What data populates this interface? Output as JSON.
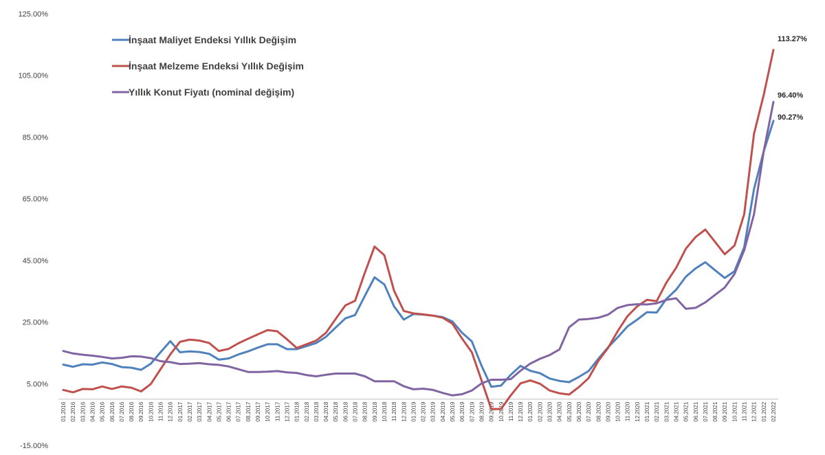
{
  "chart_data": {
    "type": "line",
    "title": "",
    "xlabel": "",
    "ylabel": "",
    "ylim": [
      -15,
      125
    ],
    "yticks": [
      "125.00%",
      "105.00%",
      "85.00%",
      "65.00%",
      "45.00%",
      "25.00%",
      "5.00%",
      "-15.00%"
    ],
    "grid": false,
    "legend_position": "top-left",
    "x": [
      "01.2016",
      "02.2016",
      "03.2016",
      "04.2016",
      "05.2016",
      "06.2016",
      "07.2016",
      "08.2016",
      "09.2016",
      "10.2016",
      "11.2016",
      "12.2016",
      "01.2017",
      "02.2017",
      "03.2017",
      "04.2017",
      "05.2017",
      "06.2017",
      "07.2017",
      "08.2017",
      "09.2017",
      "10.2017",
      "11.2017",
      "12.2017",
      "01.2018",
      "02.2018",
      "03.2018",
      "04.2018",
      "05.2018",
      "06.2018",
      "07.2018",
      "08.2018",
      "09.2018",
      "10.2018",
      "11.2018",
      "12.2018",
      "01.2019",
      "02.2019",
      "03.2019",
      "04.2019",
      "05.2019",
      "06.2019",
      "07.2019",
      "08.2019",
      "09.2019",
      "10.2019",
      "11.2019",
      "12.2019",
      "01.2020",
      "02.2020",
      "03.2020",
      "04.2020",
      "05.2020",
      "06.2020",
      "07.2020",
      "08.2020",
      "09.2020",
      "10.2020",
      "11.2020",
      "12.2020",
      "01.2021",
      "02.2021",
      "03.2021",
      "04.2021",
      "05.2021",
      "06.2021",
      "07.2021",
      "08.2021",
      "09.2021",
      "10.2021",
      "11.2021",
      "12.2021",
      "01.2022",
      "02.2022"
    ],
    "series": [
      {
        "name": "İnşaat Maliyet Endeksi Yıllık Değişim",
        "color": "#4f81bd",
        "values": [
          11.2,
          10.5,
          11.3,
          11.2,
          11.9,
          11.4,
          10.4,
          10.2,
          9.5,
          11.5,
          15.2,
          18.8,
          15.2,
          15.5,
          15.3,
          14.7,
          12.8,
          13.2,
          14.5,
          15.5,
          16.7,
          17.8,
          17.8,
          16.2,
          16.2,
          17.2,
          18.2,
          20.2,
          23.2,
          26.2,
          27.3,
          33.5,
          39.5,
          37.2,
          30.1,
          25.8,
          27.6,
          27.4,
          27.1,
          26.6,
          25.2,
          21.5,
          18.7,
          10.8,
          4.0,
          4.4,
          7.9,
          10.8,
          9.2,
          8.4,
          6.7,
          5.9,
          5.5,
          7.2,
          9.1,
          13.1,
          16.8,
          20.1,
          23.6,
          25.8,
          28.2,
          28.1,
          32.5,
          35.5,
          39.7,
          42.4,
          44.4,
          41.8,
          39.3,
          41.5,
          49.3,
          68.1,
          80.3,
          90.27
        ]
      },
      {
        "name": "İnşaat Melzeme Endeksi Yıllık Değişim",
        "color": "#c0504d",
        "values": [
          3.0,
          2.2,
          3.3,
          3.2,
          4.1,
          3.3,
          4.1,
          3.7,
          2.5,
          4.9,
          9.7,
          14.5,
          18.6,
          19.3,
          19.0,
          18.2,
          15.6,
          16.3,
          18.1,
          19.6,
          21.0,
          22.4,
          22.0,
          19.4,
          16.6,
          17.8,
          19.0,
          21.5,
          26.0,
          30.4,
          31.9,
          41.0,
          49.5,
          46.7,
          35.2,
          28.6,
          27.8,
          27.5,
          27.1,
          26.4,
          24.5,
          19.6,
          15.2,
          6.0,
          -3.2,
          -3.2,
          1.2,
          5.1,
          6.1,
          5.0,
          2.8,
          1.9,
          1.5,
          3.9,
          6.8,
          12.4,
          16.6,
          22.1,
          26.9,
          30.1,
          32.2,
          31.8,
          37.8,
          42.6,
          48.8,
          52.6,
          55.0,
          51.0,
          47.0,
          49.8,
          60.0,
          86.0,
          98.6,
          113.27
        ]
      },
      {
        "name": "Yıllık Konut Fiyatı (nominal değişim)",
        "color": "#8064a2",
        "values": [
          15.6,
          14.8,
          14.4,
          14.1,
          13.7,
          13.2,
          13.4,
          13.9,
          13.8,
          13.3,
          12.3,
          12.0,
          11.4,
          11.5,
          11.7,
          11.3,
          11.1,
          10.6,
          9.7,
          8.8,
          8.8,
          8.9,
          9.1,
          8.7,
          8.5,
          7.8,
          7.4,
          7.9,
          8.3,
          8.3,
          8.3,
          7.4,
          5.8,
          5.8,
          5.8,
          4.2,
          3.2,
          3.4,
          3.0,
          2.0,
          1.2,
          1.6,
          2.8,
          5.1,
          6.3,
          6.3,
          6.5,
          9.2,
          11.5,
          13.1,
          14.3,
          16.1,
          23.3,
          25.8,
          26.0,
          26.4,
          27.4,
          29.6,
          30.5,
          30.8,
          30.7,
          31.1,
          32.2,
          32.7,
          29.3,
          29.6,
          31.4,
          33.8,
          36.2,
          40.6,
          48.3,
          59.9,
          80.3,
          96.4
        ]
      }
    ],
    "end_labels": [
      "113.27%",
      "96.40%",
      "90.27%"
    ]
  }
}
